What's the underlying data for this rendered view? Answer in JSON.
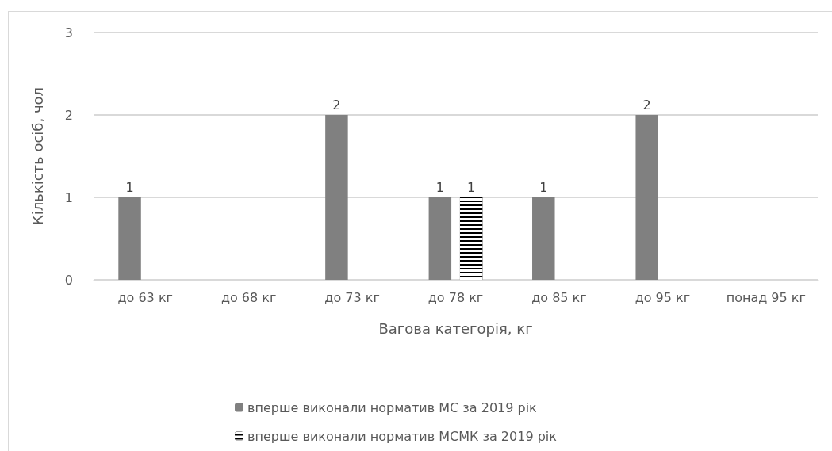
{
  "chart_data": {
    "type": "bar",
    "xlabel": "Вагова категорія, кг",
    "ylabel": "Кількість осіб, чол",
    "categories": [
      "до 63 кг",
      "до 68 кг",
      "до 73 кг",
      "до 78 кг",
      "до 85 кг",
      "до 95 кг",
      "понад 95 кг"
    ],
    "series": [
      {
        "name": "вперше виконали норматив МС за 2019 рік",
        "color": "#808080",
        "values": [
          1,
          null,
          2,
          1,
          1,
          2,
          null
        ]
      },
      {
        "name": "вперше виконали норматив МСМК за 2019 рік",
        "color": "#000000",
        "values": [
          null,
          null,
          null,
          1,
          null,
          null,
          null
        ]
      }
    ],
    "ylim": [
      0,
      3
    ],
    "yticks": [
      0,
      1,
      2,
      3
    ],
    "grid": "y",
    "legend": "bottom",
    "data_labels": true
  }
}
